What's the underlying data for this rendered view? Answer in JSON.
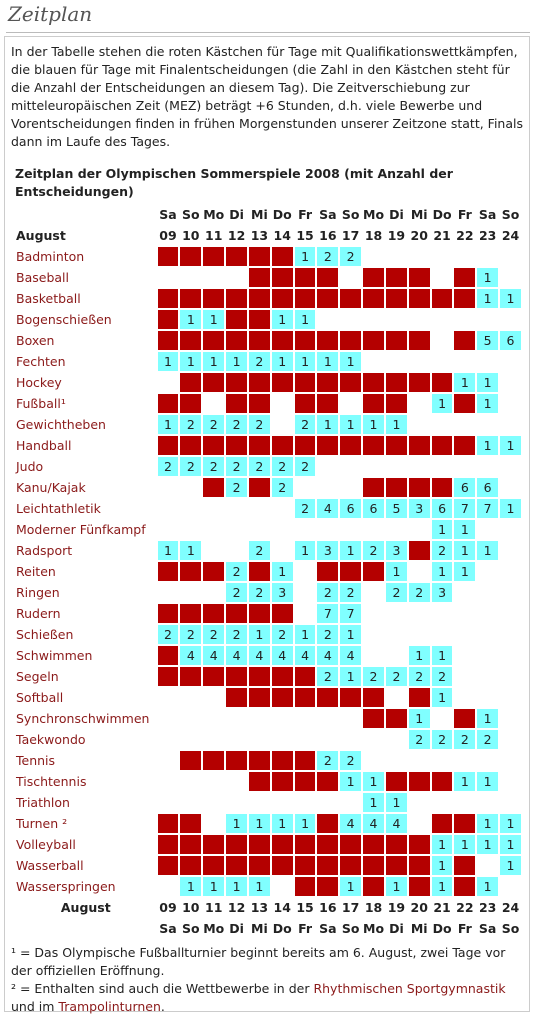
{
  "header": {
    "title": "Zeitplan"
  },
  "intro": "In der Tabelle stehen die roten Kästchen für Tage mit Qualifikationswettkämpfen, die blauen für Tage mit Finalentscheidungen (die Zahl in den Kästchen steht für die Anzahl der Entscheidungen an diesem Tag). Die Zeitverschiebung zur mitteleuropäischen Zeit (MEZ) beträgt +6 Stunden, d.h. viele Bewerbe und Vorentscheidungen finden in frühen Morgenstunden unserer Zeitzone statt, Finals dann im Laufe des Tages.",
  "table": {
    "caption": "Zeitplan der Olympischen Sommerspiele 2008 (mit Anzahl der Entscheidungen)",
    "month": "August",
    "weekdays": [
      "Sa",
      "So",
      "Mo",
      "Di",
      "Mi",
      "Do",
      "Fr",
      "Sa",
      "So",
      "Mo",
      "Di",
      "Mi",
      "Do",
      "Fr",
      "Sa",
      "So"
    ],
    "days": [
      "09",
      "10",
      "11",
      "12",
      "13",
      "14",
      "15",
      "16",
      "17",
      "18",
      "19",
      "20",
      "21",
      "22",
      "23",
      "24"
    ],
    "final_color": "#80ffff",
    "rows": [
      {
        "sport": "Badminton",
        "cells": [
          "#b40000",
          "#b40000",
          "#b40000",
          "#b40000",
          "#b40000",
          "#b40000",
          1,
          2,
          2,
          null,
          null,
          null,
          null,
          null,
          null,
          null
        ]
      },
      {
        "sport": "Baseball",
        "cells": [
          null,
          null,
          null,
          null,
          "#b40000",
          "#b40000",
          "#b40000",
          "#b40000",
          null,
          "#b40000",
          "#b40000",
          "#b40000",
          null,
          "#b40000",
          1,
          null
        ]
      },
      {
        "sport": "Basketball",
        "cells": [
          "#b40000",
          "#b40000",
          "#b40000",
          "#b40000",
          "#b40000",
          "#b40000",
          "#b40000",
          "#b40000",
          "#b40000",
          "#b40000",
          "#b40000",
          "#b40000",
          "#b40000",
          "#b40000",
          1,
          1
        ]
      },
      {
        "sport": "Bogenschießen",
        "cells": [
          "#b40000",
          1,
          1,
          "#b40000",
          "#b40000",
          1,
          1,
          null,
          null,
          null,
          null,
          null,
          null,
          null,
          null,
          null
        ]
      },
      {
        "sport": "Boxen",
        "cells": [
          "#b40000",
          "#b40000",
          "#b40000",
          "#b40000",
          "#b40000",
          "#b40000",
          "#b40000",
          "#b40000",
          "#b40000",
          "#b40000",
          "#b40000",
          "#b40000",
          null,
          "#b40000",
          5,
          6
        ]
      },
      {
        "sport": "Fechten",
        "cells": [
          1,
          1,
          1,
          1,
          2,
          1,
          1,
          1,
          1,
          null,
          null,
          null,
          null,
          null,
          null,
          null
        ]
      },
      {
        "sport": "Hockey",
        "cells": [
          null,
          "#b40000",
          "#b40000",
          "#b40000",
          "#b40000",
          "#b40000",
          "#b40000",
          "#b40000",
          "#b40000",
          "#b40000",
          "#b40000",
          "#b40000",
          "#b40000",
          1,
          1,
          null
        ]
      },
      {
        "sport": "Fußball¹",
        "cells": [
          "#b40000",
          "#b40000",
          null,
          "#b40000",
          "#b40000",
          null,
          "#b40000",
          "#b40000",
          null,
          "#b40000",
          "#b40000",
          null,
          1,
          "#b40000",
          1,
          null
        ]
      },
      {
        "sport": "Gewichtheben",
        "cells": [
          1,
          2,
          2,
          2,
          2,
          null,
          2,
          1,
          1,
          1,
          1,
          null,
          null,
          null,
          null,
          null
        ]
      },
      {
        "sport": "Handball",
        "cells": [
          "#b40000",
          "#b40000",
          "#b40000",
          "#b40000",
          "#b40000",
          "#b40000",
          "#b40000",
          "#b40000",
          "#b40000",
          "#b40000",
          "#b40000",
          "#b40000",
          "#b40000",
          "#b40000",
          1,
          1
        ]
      },
      {
        "sport": "Judo",
        "cells": [
          2,
          2,
          2,
          2,
          2,
          2,
          2,
          null,
          null,
          null,
          null,
          null,
          null,
          null,
          null,
          null
        ]
      },
      {
        "sport": "Kanu/Kajak",
        "cells": [
          null,
          null,
          "#b40000",
          2,
          "#b40000",
          2,
          null,
          null,
          null,
          "#b40000",
          "#b40000",
          "#b40000",
          "#b40000",
          6,
          6,
          null
        ]
      },
      {
        "sport": "Leichtathletik",
        "cells": [
          null,
          null,
          null,
          null,
          null,
          null,
          2,
          4,
          6,
          6,
          5,
          3,
          6,
          7,
          7,
          1
        ]
      },
      {
        "sport": "Moderner Fünfkampf",
        "cells": [
          null,
          null,
          null,
          null,
          null,
          null,
          null,
          null,
          null,
          null,
          null,
          null,
          1,
          1,
          null,
          null
        ]
      },
      {
        "sport": "Radsport",
        "cells": [
          1,
          1,
          null,
          null,
          2,
          null,
          1,
          3,
          1,
          2,
          3,
          "#b40000",
          2,
          1,
          1,
          null
        ]
      },
      {
        "sport": "Reiten",
        "cells": [
          "#b40000",
          "#b40000",
          "#b40000",
          2,
          "#b40000",
          1,
          null,
          "#b40000",
          "#b40000",
          "#b40000",
          1,
          null,
          1,
          1,
          null,
          null
        ]
      },
      {
        "sport": "Ringen",
        "cells": [
          null,
          null,
          null,
          2,
          2,
          3,
          null,
          2,
          2,
          null,
          2,
          2,
          3,
          null,
          null,
          null
        ]
      },
      {
        "sport": "Rudern",
        "cells": [
          "#b40000",
          "#b40000",
          "#b40000",
          "#b40000",
          "#b40000",
          "#b40000",
          null,
          7,
          7,
          null,
          null,
          null,
          null,
          null,
          null,
          null
        ]
      },
      {
        "sport": "Schießen",
        "cells": [
          2,
          2,
          2,
          2,
          1,
          2,
          1,
          2,
          1,
          null,
          null,
          null,
          null,
          null,
          null,
          null
        ]
      },
      {
        "sport": "Schwimmen",
        "cells": [
          "#b40000",
          4,
          4,
          4,
          4,
          4,
          4,
          4,
          4,
          null,
          null,
          1,
          1,
          null,
          null,
          null
        ]
      },
      {
        "sport": "Segeln",
        "cells": [
          "#b40000",
          "#b40000",
          "#b40000",
          "#b40000",
          "#b40000",
          "#b40000",
          "#b40000",
          2,
          1,
          2,
          2,
          2,
          2,
          null,
          null,
          null
        ]
      },
      {
        "sport": "Softball",
        "cells": [
          null,
          null,
          null,
          "#b40000",
          "#b40000",
          "#b40000",
          "#b40000",
          "#b40000",
          "#b40000",
          "#b40000",
          null,
          "#b40000",
          1,
          null,
          null,
          null
        ]
      },
      {
        "sport": "Synchronschwimmen",
        "cells": [
          null,
          null,
          null,
          null,
          null,
          null,
          null,
          null,
          null,
          "#b40000",
          "#b40000",
          1,
          null,
          "#b40000",
          1,
          null
        ]
      },
      {
        "sport": "Taekwondo",
        "cells": [
          null,
          null,
          null,
          null,
          null,
          null,
          null,
          null,
          null,
          null,
          null,
          2,
          2,
          2,
          2,
          null
        ]
      },
      {
        "sport": "Tennis",
        "cells": [
          null,
          "#b40000",
          "#b40000",
          "#b40000",
          "#b40000",
          "#b40000",
          "#b40000",
          2,
          2,
          null,
          null,
          null,
          null,
          null,
          null,
          null
        ]
      },
      {
        "sport": "Tischtennis",
        "cells": [
          null,
          null,
          null,
          null,
          "#b40000",
          "#b40000",
          "#b40000",
          "#b40000",
          1,
          1,
          "#b40000",
          "#b40000",
          "#b40000",
          1,
          1,
          null
        ]
      },
      {
        "sport": "Triathlon",
        "cells": [
          null,
          null,
          null,
          null,
          null,
          null,
          null,
          null,
          null,
          1,
          1,
          null,
          null,
          null,
          null,
          null
        ]
      },
      {
        "sport": "Turnen ²",
        "cells": [
          "#b40000",
          "#b40000",
          null,
          1,
          1,
          1,
          1,
          "#b40000",
          4,
          4,
          4,
          null,
          "#b40000",
          "#b40000",
          1,
          1
        ]
      },
      {
        "sport": "Volleyball",
        "cells": [
          "#b40000",
          "#b40000",
          "#b40000",
          "#b40000",
          "#b40000",
          "#b40000",
          "#b40000",
          "#b40000",
          "#b40000",
          "#b40000",
          "#b40000",
          "#b40000",
          1,
          1,
          1,
          1
        ]
      },
      {
        "sport": "Wasserball",
        "cells": [
          "#b40000",
          "#b40000",
          "#b40000",
          "#b40000",
          "#b40000",
          "#b40000",
          "#b40000",
          "#b40000",
          "#b40000",
          "#b40000",
          "#b40000",
          "#b40000",
          1,
          "#b40000",
          null,
          1
        ]
      },
      {
        "sport": "Wasserspringen",
        "cells": [
          null,
          1,
          1,
          1,
          1,
          null,
          "#b40000",
          "#b40000",
          1,
          "#b40000",
          1,
          "#b40000",
          1,
          "#b40000",
          1,
          null
        ]
      }
    ]
  },
  "footnotes": [
    [
      "¹ = Das Olympische Fußballturnier beginnt bereits am 6. August, zwei Tage vor der offiziellen Eröffnung."
    ],
    [
      "² = Enthalten sind auch die Wettbewerbe in der ",
      "Rhythmischen Sportgymnastik",
      " und im ",
      "Trampolinturnen",
      "."
    ]
  ]
}
